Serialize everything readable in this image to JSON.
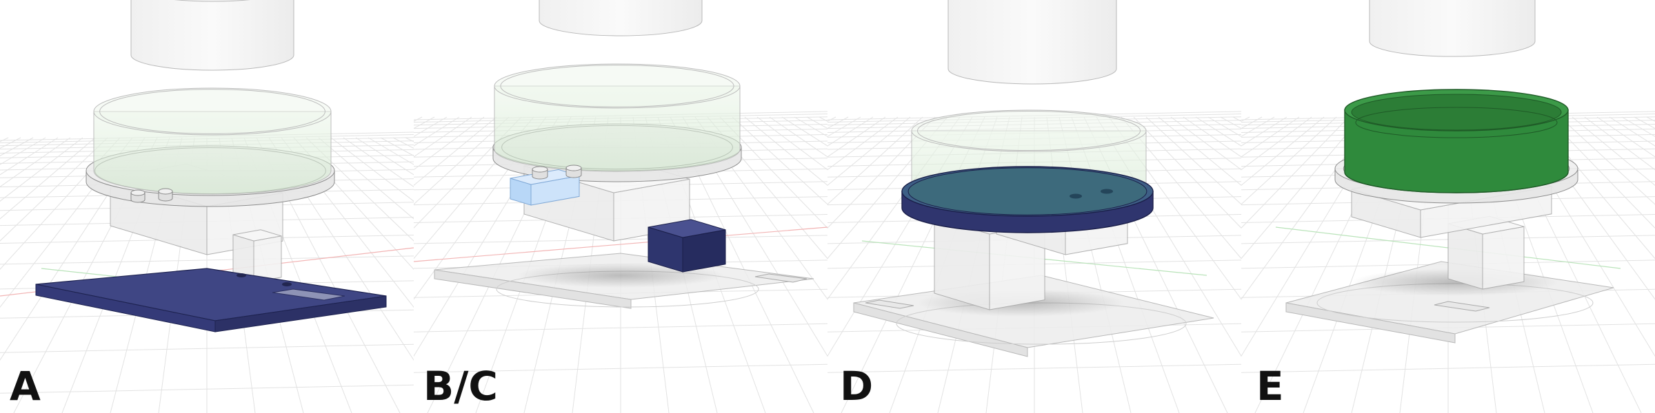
{
  "panels": [
    {
      "id": "A",
      "label": "A",
      "highlight": "base-plate",
      "highlight_color": "#343a78"
    },
    {
      "id": "BC",
      "label": "B/C",
      "highlight": "sensor-blocks",
      "highlight_color": "#2e356e",
      "secondary_color": "#a8cef5"
    },
    {
      "id": "D",
      "label": "D",
      "highlight": "disc-tray",
      "highlight_color": "#363d7a"
    },
    {
      "id": "E",
      "label": "E",
      "highlight": "green-cup",
      "highlight_color": "#2f8a3c"
    }
  ],
  "colors": {
    "background": "#ffffff",
    "grid": "#e2e2e2",
    "ghost_stroke": "#9a9a9a",
    "ghost_fill": "#e9e9e9",
    "green_glass": "#d8ecd3",
    "axis_red": "#f2b4b4",
    "axis_green": "#b9e3b9"
  }
}
